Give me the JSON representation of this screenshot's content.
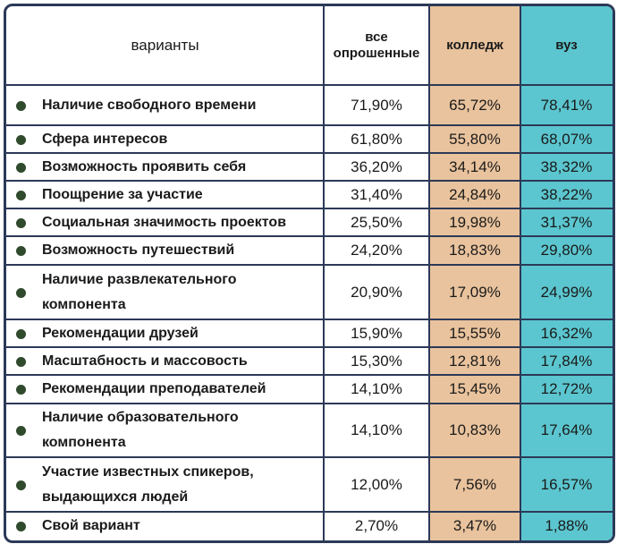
{
  "table": {
    "header": [
      [
        "варианты"
      ],
      [
        "все",
        "опрошенные"
      ],
      [
        "колледж"
      ],
      [
        "вуз"
      ]
    ],
    "rows": [
      {
        "label": [
          "Наличие свободного времени"
        ],
        "values": [
          "71,90%",
          "65,72%",
          "78,41%"
        ]
      },
      {
        "label": [
          "Сфера интересов"
        ],
        "values": [
          "61,80%",
          "55,80%",
          "68,07%"
        ]
      },
      {
        "label": [
          "Возможность проявить себя"
        ],
        "values": [
          "36,20%",
          "34,14%",
          "38,32%"
        ]
      },
      {
        "label": [
          "Поощрение за участие"
        ],
        "values": [
          "31,40%",
          "24,84%",
          "38,22%"
        ]
      },
      {
        "label": [
          "Социальная значимость проектов"
        ],
        "values": [
          "25,50%",
          "19,98%",
          "31,37%"
        ]
      },
      {
        "label": [
          "Возможность путешествий"
        ],
        "values": [
          "24,20%",
          "18,83%",
          "29,80%"
        ]
      },
      {
        "label": [
          "Наличие развлекательного",
          "компонента"
        ],
        "values": [
          "20,90%",
          "17,09%",
          "24,99%"
        ]
      },
      {
        "label": [
          "Рекомендации друзей"
        ],
        "values": [
          "15,90%",
          "15,55%",
          "16,32%"
        ]
      },
      {
        "label": [
          "Масштабность и массовость"
        ],
        "values": [
          "15,30%",
          "12,81%",
          "17,84%"
        ]
      },
      {
        "label": [
          "Рекомендации преподавателей"
        ],
        "values": [
          "14,10%",
          "15,45%",
          "12,72%"
        ]
      },
      {
        "label": [
          "Наличие образовательного",
          "компонента"
        ],
        "values": [
          "14,10%",
          "10,83%",
          "17,64%"
        ]
      },
      {
        "label": [
          "Участие известных спикеров,",
          "выдающихся людей"
        ],
        "values": [
          "12,00%",
          "7,56%",
          "16,57%"
        ]
      },
      {
        "label": [
          "Свой вариант"
        ],
        "values": [
          "2,70%",
          "3,47%",
          "1,88%"
        ]
      }
    ]
  }
}
